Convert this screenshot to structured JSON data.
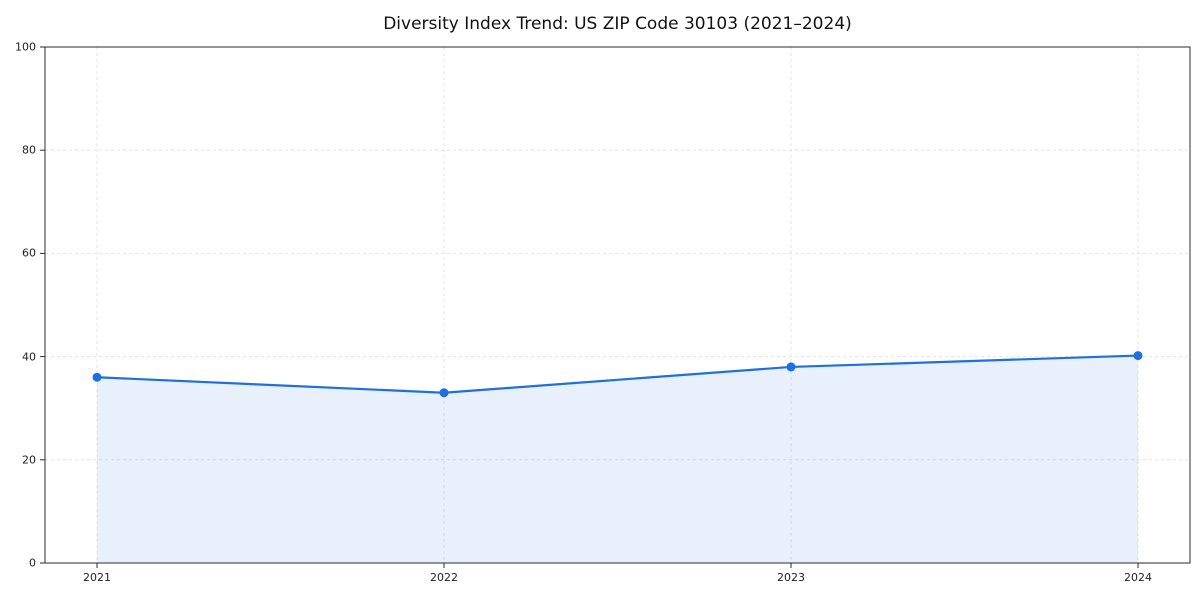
{
  "chart_data": {
    "type": "area",
    "title": "Diversity Index Trend: US ZIP Code 30103 (2021–2024)",
    "x": [
      2021,
      2022,
      2023,
      2024
    ],
    "x_tick_labels": [
      "2021",
      "2022",
      "2023",
      "2024"
    ],
    "series": [
      {
        "name": "Diversity Index",
        "values": [
          36,
          33,
          38,
          40.2
        ]
      }
    ],
    "xlabel": "",
    "ylabel": "",
    "ylim": [
      0,
      100
    ],
    "yticks": [
      0,
      20,
      40,
      60,
      80,
      100
    ],
    "grid": "dashed",
    "legend_position": "none",
    "colors": {
      "line": "#1f6fe0",
      "marker": "#1f6fe0",
      "fill": "rgba(31, 111, 224, 0.10)",
      "gridline": "#e4e4e4",
      "spine": "#2b2b2b",
      "tick_text": "#222222",
      "background": "#ffffff"
    }
  }
}
